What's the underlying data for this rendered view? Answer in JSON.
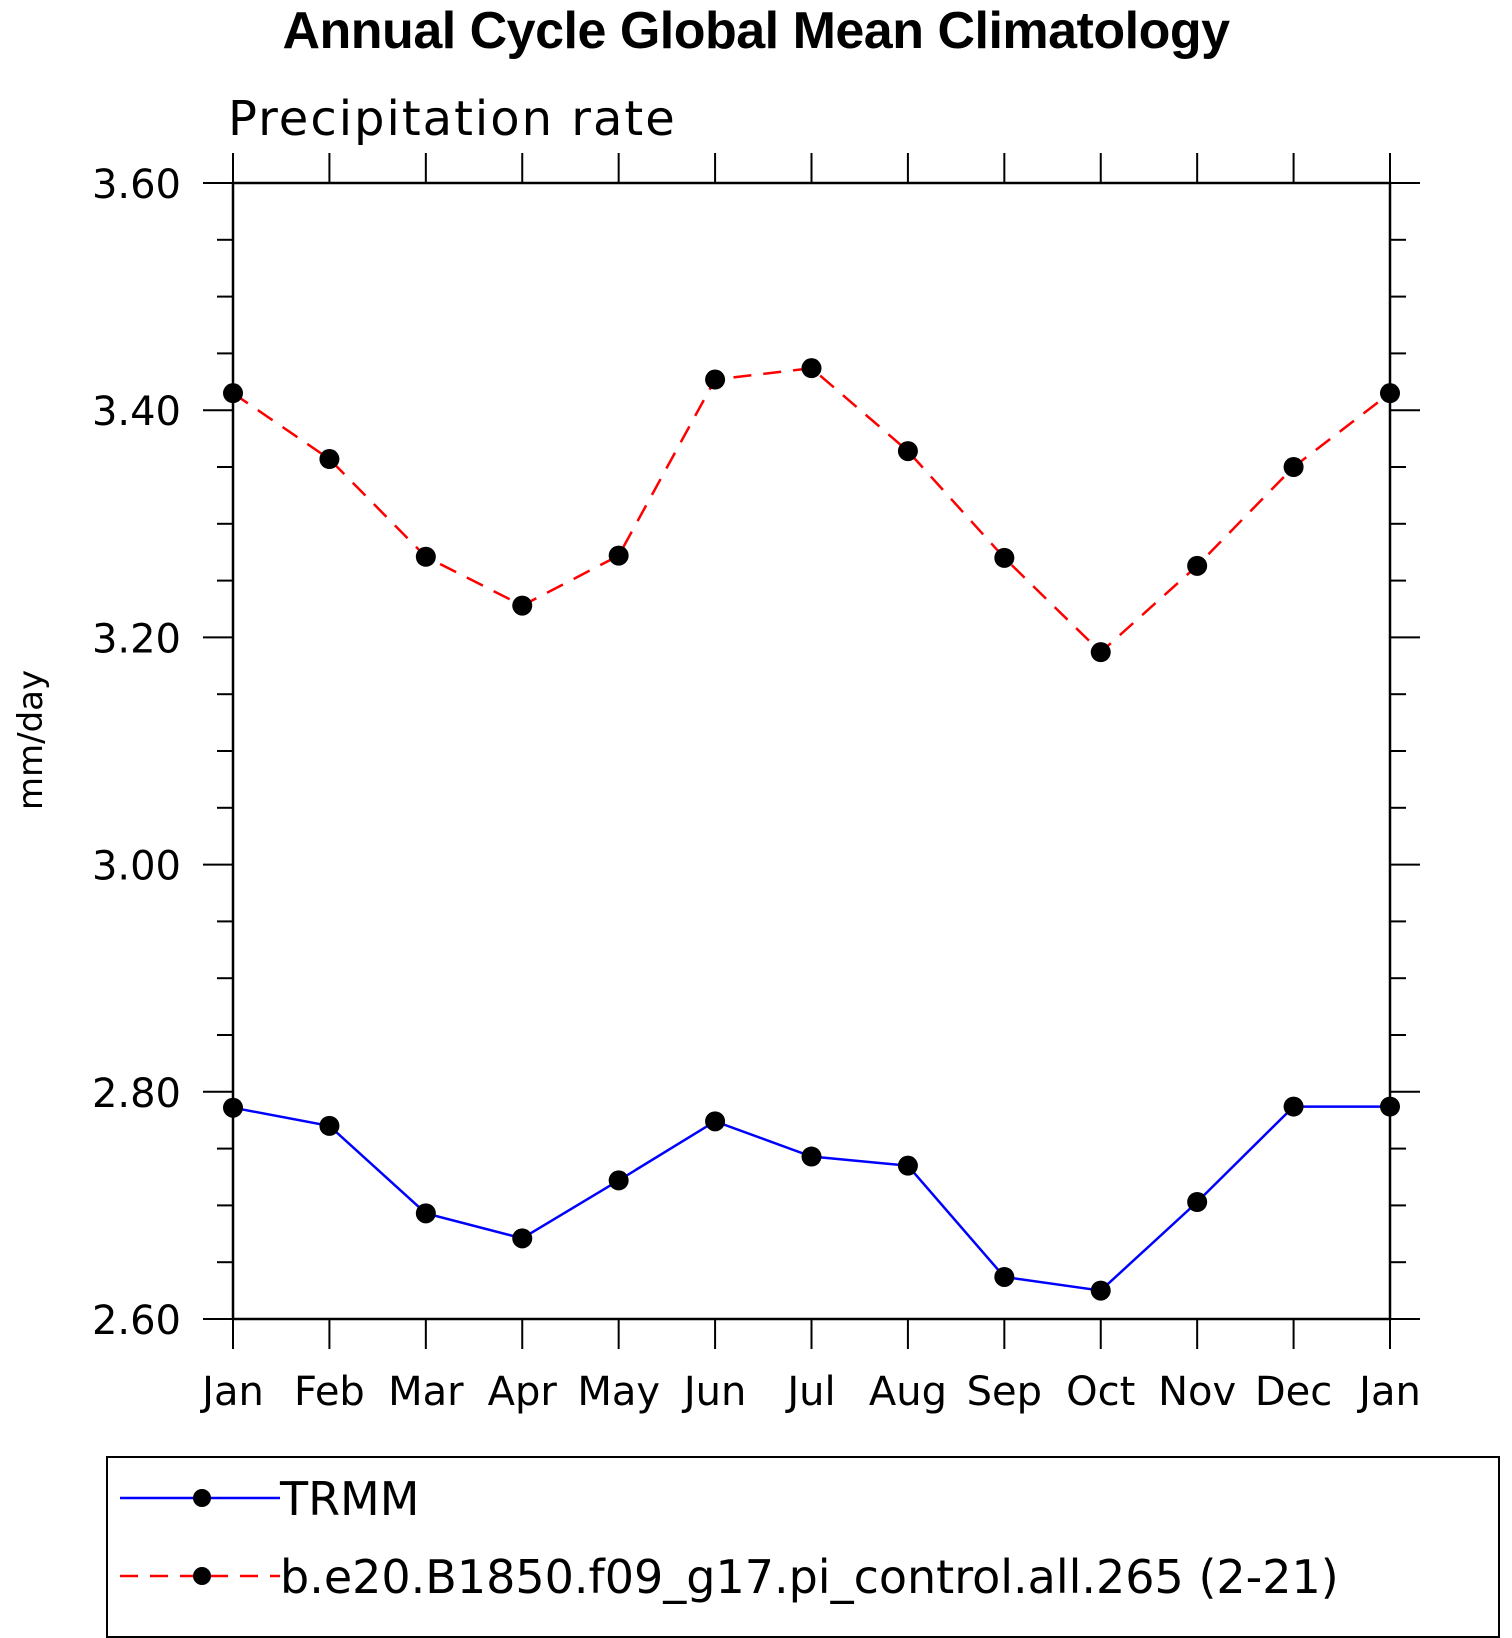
{
  "chart_data": {
    "type": "line",
    "title": "Annual Cycle Global Mean Climatology",
    "subtitle": "Precipitation rate",
    "ylabel": "mm/day",
    "categories": [
      "Jan",
      "Feb",
      "Mar",
      "Apr",
      "May",
      "Jun",
      "Jul",
      "Aug",
      "Sep",
      "Oct",
      "Nov",
      "Dec",
      "Jan"
    ],
    "ylim": [
      2.6,
      3.6
    ],
    "yticks": [
      "2.60",
      "2.80",
      "3.00",
      "3.20",
      "3.40",
      "3.60"
    ],
    "grid": false,
    "legend_position": "bottom",
    "series": [
      {
        "name": "TRMM",
        "color": "#0000ff",
        "style": "solid",
        "values": [
          2.786,
          2.77,
          2.693,
          2.671,
          2.722,
          2.774,
          2.743,
          2.735,
          2.637,
          2.625,
          2.703,
          2.787,
          2.787
        ]
      },
      {
        "name": "b.e20.B1850.f09_g17.pi_control.all.265 (2-21)",
        "color": "#ff0000",
        "style": "dashed",
        "values": [
          3.415,
          3.357,
          3.271,
          3.228,
          3.272,
          3.427,
          3.437,
          3.364,
          3.27,
          3.187,
          3.263,
          3.35,
          3.415
        ]
      }
    ]
  }
}
